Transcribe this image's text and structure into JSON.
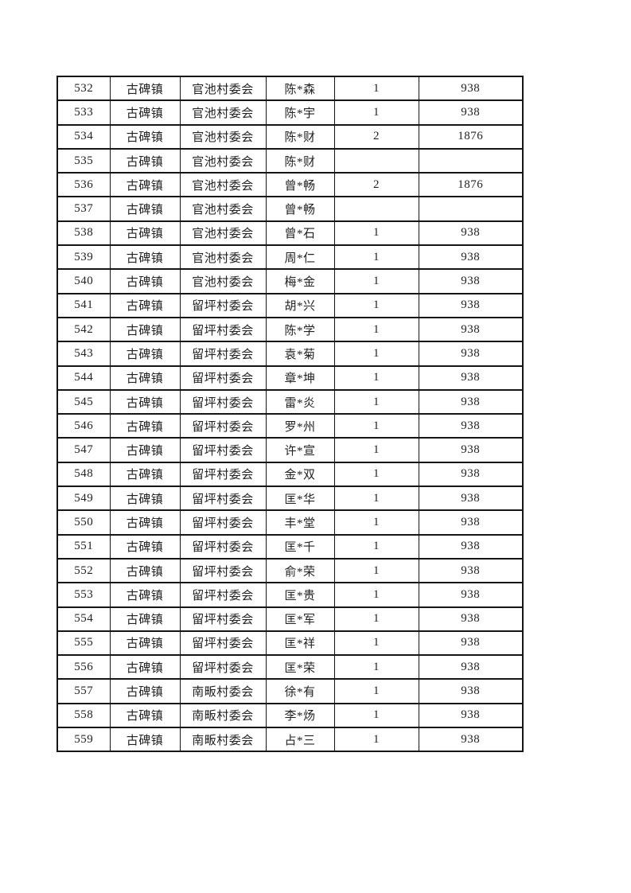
{
  "page": {
    "background_color": "#ffffff",
    "text_color": "#222222",
    "border_color": "#151515"
  },
  "table": {
    "row_fields": [
      "serial",
      "town",
      "village",
      "name",
      "count",
      "amount"
    ],
    "rows": [
      [
        "532",
        "古碑镇",
        "官池村委会",
        "陈*森",
        "1",
        "938"
      ],
      [
        "533",
        "古碑镇",
        "官池村委会",
        "陈*宇",
        "1",
        "938"
      ],
      [
        "534",
        "古碑镇",
        "官池村委会",
        "陈*财",
        "2",
        "1876"
      ],
      [
        "535",
        "古碑镇",
        "官池村委会",
        "陈*财",
        "",
        ""
      ],
      [
        "536",
        "古碑镇",
        "官池村委会",
        "曾*畅",
        "2",
        "1876"
      ],
      [
        "537",
        "古碑镇",
        "官池村委会",
        "曾*畅",
        "",
        ""
      ],
      [
        "538",
        "古碑镇",
        "官池村委会",
        "曾*石",
        "1",
        "938"
      ],
      [
        "539",
        "古碑镇",
        "官池村委会",
        "周*仁",
        "1",
        "938"
      ],
      [
        "540",
        "古碑镇",
        "官池村委会",
        "梅*金",
        "1",
        "938"
      ],
      [
        "541",
        "古碑镇",
        "留坪村委会",
        "胡*兴",
        "1",
        "938"
      ],
      [
        "542",
        "古碑镇",
        "留坪村委会",
        "陈*学",
        "1",
        "938"
      ],
      [
        "543",
        "古碑镇",
        "留坪村委会",
        "袁*菊",
        "1",
        "938"
      ],
      [
        "544",
        "古碑镇",
        "留坪村委会",
        "章*坤",
        "1",
        "938"
      ],
      [
        "545",
        "古碑镇",
        "留坪村委会",
        "雷*炎",
        "1",
        "938"
      ],
      [
        "546",
        "古碑镇",
        "留坪村委会",
        "罗*州",
        "1",
        "938"
      ],
      [
        "547",
        "古碑镇",
        "留坪村委会",
        "许*宣",
        "1",
        "938"
      ],
      [
        "548",
        "古碑镇",
        "留坪村委会",
        "金*双",
        "1",
        "938"
      ],
      [
        "549",
        "古碑镇",
        "留坪村委会",
        "匡*华",
        "1",
        "938"
      ],
      [
        "550",
        "古碑镇",
        "留坪村委会",
        "丰*堂",
        "1",
        "938"
      ],
      [
        "551",
        "古碑镇",
        "留坪村委会",
        "匡*千",
        "1",
        "938"
      ],
      [
        "552",
        "古碑镇",
        "留坪村委会",
        "俞*荣",
        "1",
        "938"
      ],
      [
        "553",
        "古碑镇",
        "留坪村委会",
        "匡*贵",
        "1",
        "938"
      ],
      [
        "554",
        "古碑镇",
        "留坪村委会",
        "匡*军",
        "1",
        "938"
      ],
      [
        "555",
        "古碑镇",
        "留坪村委会",
        "匡*祥",
        "1",
        "938"
      ],
      [
        "556",
        "古碑镇",
        "留坪村委会",
        "匡*荣",
        "1",
        "938"
      ],
      [
        "557",
        "古碑镇",
        "南畈村委会",
        "徐*有",
        "1",
        "938"
      ],
      [
        "558",
        "古碑镇",
        "南畈村委会",
        "李*炀",
        "1",
        "938"
      ],
      [
        "559",
        "古碑镇",
        "南畈村委会",
        "占*三",
        "1",
        "938"
      ]
    ]
  }
}
